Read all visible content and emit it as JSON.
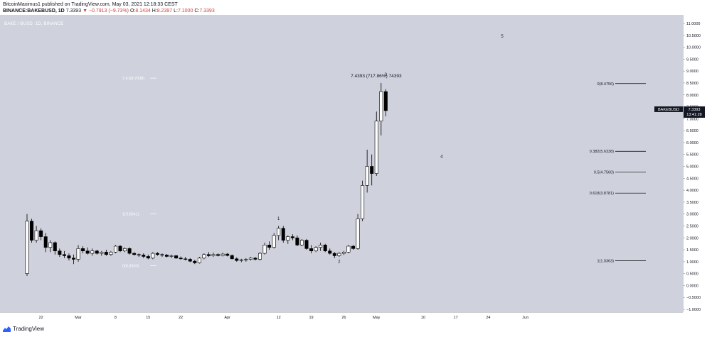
{
  "header": {
    "publisher_line": "BitcoinMaximus1 published on TradingView.com, May 03, 2021 12:18:33 CEST",
    "symbol": "BINANCE:BAKEBUSD, 1D",
    "price": "7.3393",
    "change": "−0.7913 (−9.73%)",
    "open_label": "O:",
    "open": "8.1434",
    "high_label": "H:",
    "high": "8.2397",
    "low_label": "L:",
    "low": "7.1000",
    "close_label": "C:",
    "close": "7.3393"
  },
  "watermark": "BAKE / BUSD, 1D, BINANCE",
  "branding": "TradingView",
  "colors": {
    "background": "#cfd1dc",
    "up_body": "#ffffff",
    "down_body": "#000000",
    "wick": "#000000",
    "fib_line": "#000000",
    "annotation": "#ffffff"
  },
  "price_label": {
    "symbol": "BAKEBUSD",
    "price": "7.3393",
    "countdown": "13:41:28"
  },
  "chart_data": {
    "type": "candlestick",
    "title": "",
    "scale": "linear",
    "ylim": [
      -1.0,
      11.0
    ],
    "y_ticks": [
      "11.0000",
      "10.5000",
      "10.0000",
      "9.5000",
      "9.0000",
      "8.5000",
      "8.0000",
      "7.5000",
      "7.0000",
      "6.5000",
      "6.0000",
      "5.5000",
      "5.0000",
      "4.5000",
      "4.0000",
      "3.5000",
      "3.0000",
      "2.5000",
      "2.0000",
      "1.5000",
      "1.0000",
      "0.5000",
      "0.0000",
      "−0.5000",
      "−1.0000"
    ],
    "y_tick_values": [
      11.0,
      10.5,
      10.0,
      9.5,
      9.0,
      8.5,
      8.0,
      7.5,
      7.0,
      6.5,
      6.0,
      5.5,
      5.0,
      4.5,
      4.0,
      3.5,
      3.0,
      2.5,
      2.0,
      1.5,
      1.0,
      0.5,
      0.0,
      -0.5,
      -1.0
    ],
    "x_ticks": [
      "22",
      "Mar",
      "8",
      "15",
      "22",
      "Apr",
      "12",
      "19",
      "26",
      "May",
      "10",
      "17",
      "24",
      "Jun"
    ],
    "x_tick_days": [
      3,
      11,
      19,
      26,
      33,
      43,
      54,
      61,
      68,
      75,
      85,
      92,
      99,
      107
    ],
    "grid": false,
    "candles": [
      {
        "day": 0,
        "o": 0.5,
        "h": 3.0,
        "l": 0.4,
        "c": 2.7
      },
      {
        "day": 1,
        "o": 2.7,
        "h": 2.8,
        "l": 1.8,
        "c": 1.9
      },
      {
        "day": 2,
        "o": 1.9,
        "h": 2.5,
        "l": 1.8,
        "c": 2.3
      },
      {
        "day": 3,
        "o": 2.3,
        "h": 2.4,
        "l": 1.9,
        "c": 2.05
      },
      {
        "day": 4,
        "o": 2.05,
        "h": 2.2,
        "l": 1.4,
        "c": 1.6
      },
      {
        "day": 5,
        "o": 1.6,
        "h": 1.9,
        "l": 1.4,
        "c": 1.8
      },
      {
        "day": 6,
        "o": 1.8,
        "h": 1.85,
        "l": 1.3,
        "c": 1.45
      },
      {
        "day": 7,
        "o": 1.45,
        "h": 1.55,
        "l": 1.2,
        "c": 1.3
      },
      {
        "day": 8,
        "o": 1.3,
        "h": 1.45,
        "l": 1.15,
        "c": 1.25
      },
      {
        "day": 9,
        "o": 1.25,
        "h": 1.35,
        "l": 1.05,
        "c": 1.15
      },
      {
        "day": 10,
        "o": 1.15,
        "h": 1.3,
        "l": 0.9,
        "c": 1.1
      },
      {
        "day": 11,
        "o": 1.1,
        "h": 1.7,
        "l": 1.0,
        "c": 1.55
      },
      {
        "day": 12,
        "o": 1.55,
        "h": 1.65,
        "l": 1.35,
        "c": 1.45
      },
      {
        "day": 13,
        "o": 1.45,
        "h": 1.6,
        "l": 1.3,
        "c": 1.35
      },
      {
        "day": 14,
        "o": 1.35,
        "h": 1.55,
        "l": 1.25,
        "c": 1.45
      },
      {
        "day": 15,
        "o": 1.45,
        "h": 1.5,
        "l": 1.3,
        "c": 1.35
      },
      {
        "day": 16,
        "o": 1.35,
        "h": 1.45,
        "l": 1.25,
        "c": 1.4
      },
      {
        "day": 17,
        "o": 1.4,
        "h": 1.5,
        "l": 1.25,
        "c": 1.3
      },
      {
        "day": 18,
        "o": 1.3,
        "h": 1.45,
        "l": 1.25,
        "c": 1.4
      },
      {
        "day": 19,
        "o": 1.4,
        "h": 1.7,
        "l": 1.35,
        "c": 1.65
      },
      {
        "day": 20,
        "o": 1.65,
        "h": 1.7,
        "l": 1.4,
        "c": 1.45
      },
      {
        "day": 21,
        "o": 1.45,
        "h": 1.6,
        "l": 1.4,
        "c": 1.55
      },
      {
        "day": 22,
        "o": 1.55,
        "h": 1.6,
        "l": 1.3,
        "c": 1.35
      },
      {
        "day": 23,
        "o": 1.35,
        "h": 1.4,
        "l": 1.25,
        "c": 1.3
      },
      {
        "day": 24,
        "o": 1.3,
        "h": 1.35,
        "l": 1.2,
        "c": 1.28
      },
      {
        "day": 25,
        "o": 1.28,
        "h": 1.35,
        "l": 1.15,
        "c": 1.22
      },
      {
        "day": 26,
        "o": 1.22,
        "h": 1.3,
        "l": 1.1,
        "c": 1.15
      },
      {
        "day": 27,
        "o": 1.15,
        "h": 1.4,
        "l": 1.1,
        "c": 1.35
      },
      {
        "day": 28,
        "o": 1.35,
        "h": 1.4,
        "l": 1.25,
        "c": 1.3
      },
      {
        "day": 29,
        "o": 1.3,
        "h": 1.35,
        "l": 1.2,
        "c": 1.28
      },
      {
        "day": 30,
        "o": 1.28,
        "h": 1.32,
        "l": 1.18,
        "c": 1.22
      },
      {
        "day": 31,
        "o": 1.22,
        "h": 1.3,
        "l": 1.15,
        "c": 1.25
      },
      {
        "day": 32,
        "o": 1.25,
        "h": 1.28,
        "l": 1.12,
        "c": 1.15
      },
      {
        "day": 33,
        "o": 1.15,
        "h": 1.22,
        "l": 1.08,
        "c": 1.12
      },
      {
        "day": 34,
        "o": 1.12,
        "h": 1.2,
        "l": 1.05,
        "c": 1.1
      },
      {
        "day": 35,
        "o": 1.1,
        "h": 1.15,
        "l": 0.98,
        "c": 1.02
      },
      {
        "day": 36,
        "o": 1.02,
        "h": 1.08,
        "l": 0.9,
        "c": 0.95
      },
      {
        "day": 37,
        "o": 0.95,
        "h": 1.2,
        "l": 0.92,
        "c": 1.15
      },
      {
        "day": 38,
        "o": 1.15,
        "h": 1.35,
        "l": 1.1,
        "c": 1.3
      },
      {
        "day": 39,
        "o": 1.3,
        "h": 1.4,
        "l": 1.2,
        "c": 1.25
      },
      {
        "day": 40,
        "o": 1.25,
        "h": 1.38,
        "l": 1.2,
        "c": 1.3
      },
      {
        "day": 41,
        "o": 1.3,
        "h": 1.35,
        "l": 1.22,
        "c": 1.26
      },
      {
        "day": 42,
        "o": 1.26,
        "h": 1.38,
        "l": 1.22,
        "c": 1.32
      },
      {
        "day": 43,
        "o": 1.32,
        "h": 1.36,
        "l": 1.22,
        "c": 1.26
      },
      {
        "day": 44,
        "o": 1.26,
        "h": 1.3,
        "l": 1.1,
        "c": 1.12
      },
      {
        "day": 45,
        "o": 1.12,
        "h": 1.18,
        "l": 1.0,
        "c": 1.05
      },
      {
        "day": 46,
        "o": 1.05,
        "h": 1.12,
        "l": 0.98,
        "c": 1.08
      },
      {
        "day": 47,
        "o": 1.08,
        "h": 1.15,
        "l": 1.0,
        "c": 1.1
      },
      {
        "day": 48,
        "o": 1.1,
        "h": 1.2,
        "l": 1.05,
        "c": 1.15
      },
      {
        "day": 49,
        "o": 1.15,
        "h": 1.2,
        "l": 1.05,
        "c": 1.1
      },
      {
        "day": 50,
        "o": 1.1,
        "h": 1.4,
        "l": 1.05,
        "c": 1.35
      },
      {
        "day": 51,
        "o": 1.35,
        "h": 1.8,
        "l": 1.3,
        "c": 1.7
      },
      {
        "day": 52,
        "o": 1.7,
        "h": 1.85,
        "l": 1.5,
        "c": 1.6
      },
      {
        "day": 53,
        "o": 1.6,
        "h": 2.2,
        "l": 1.55,
        "c": 2.1
      },
      {
        "day": 54,
        "o": 2.1,
        "h": 2.5,
        "l": 1.9,
        "c": 2.4
      },
      {
        "day": 55,
        "o": 2.4,
        "h": 2.5,
        "l": 1.8,
        "c": 1.9
      },
      {
        "day": 56,
        "o": 1.9,
        "h": 2.1,
        "l": 1.75,
        "c": 2.05
      },
      {
        "day": 57,
        "o": 2.05,
        "h": 2.15,
        "l": 1.9,
        "c": 2.0
      },
      {
        "day": 58,
        "o": 2.0,
        "h": 2.1,
        "l": 1.65,
        "c": 1.7
      },
      {
        "day": 59,
        "o": 1.7,
        "h": 1.95,
        "l": 1.65,
        "c": 1.9
      },
      {
        "day": 60,
        "o": 1.9,
        "h": 1.95,
        "l": 1.5,
        "c": 1.55
      },
      {
        "day": 61,
        "o": 1.55,
        "h": 1.7,
        "l": 1.35,
        "c": 1.45
      },
      {
        "day": 62,
        "o": 1.45,
        "h": 1.65,
        "l": 1.4,
        "c": 1.6
      },
      {
        "day": 63,
        "o": 1.6,
        "h": 1.8,
        "l": 1.45,
        "c": 1.7
      },
      {
        "day": 64,
        "o": 1.7,
        "h": 1.75,
        "l": 1.4,
        "c": 1.45
      },
      {
        "day": 65,
        "o": 1.45,
        "h": 1.55,
        "l": 1.3,
        "c": 1.35
      },
      {
        "day": 66,
        "o": 1.35,
        "h": 1.4,
        "l": 1.15,
        "c": 1.25
      },
      {
        "day": 67,
        "o": 1.25,
        "h": 1.4,
        "l": 1.2,
        "c": 1.35
      },
      {
        "day": 68,
        "o": 1.35,
        "h": 1.45,
        "l": 1.28,
        "c": 1.4
      },
      {
        "day": 69,
        "o": 1.4,
        "h": 1.7,
        "l": 1.35,
        "c": 1.65
      },
      {
        "day": 70,
        "o": 1.65,
        "h": 1.7,
        "l": 1.5,
        "c": 1.55
      },
      {
        "day": 71,
        "o": 1.55,
        "h": 3.0,
        "l": 1.5,
        "c": 2.8
      },
      {
        "day": 72,
        "o": 2.8,
        "h": 4.4,
        "l": 2.7,
        "c": 4.2
      },
      {
        "day": 73,
        "o": 4.2,
        "h": 5.7,
        "l": 3.9,
        "c": 5.0
      },
      {
        "day": 74,
        "o": 5.0,
        "h": 5.5,
        "l": 4.2,
        "c": 4.7
      },
      {
        "day": 75,
        "o": 4.7,
        "h": 7.3,
        "l": 4.6,
        "c": 6.9
      },
      {
        "day": 76,
        "o": 6.9,
        "h": 8.5,
        "l": 6.3,
        "c": 8.14
      },
      {
        "day": 77,
        "o": 8.14,
        "h": 8.24,
        "l": 7.1,
        "c": 7.34
      }
    ],
    "fib_levels": [
      {
        "label": "0(8.4756)",
        "value": 8.4756
      },
      {
        "label": "0.382(5.6338)",
        "value": 5.6338
      },
      {
        "label": "0.5(4.7560)",
        "value": 4.756
      },
      {
        "label": "0.618(3.8781)",
        "value": 3.8781
      },
      {
        "label": "1(1.0363)",
        "value": 1.0363
      }
    ],
    "ext_levels": [
      {
        "label": "3.61(8.7038)",
        "value": 8.7038
      },
      {
        "label": "1(3.0041)",
        "value": 3.0041
      },
      {
        "label": "0(0.8303)",
        "value": 0.8303
      }
    ],
    "wave_labels": [
      {
        "label": "1",
        "day": 54,
        "value": 2.75
      },
      {
        "label": "2",
        "day": 67,
        "value": 0.95
      },
      {
        "label": "3",
        "day": 77,
        "value": 8.8
      },
      {
        "label": "4",
        "day": 89,
        "value": 5.35
      },
      {
        "label": "5",
        "day": 102,
        "value": 10.4
      }
    ],
    "move_annotation": {
      "label": "7.4393 (717.86%) 74393",
      "day": 67,
      "value": 8.8
    }
  }
}
